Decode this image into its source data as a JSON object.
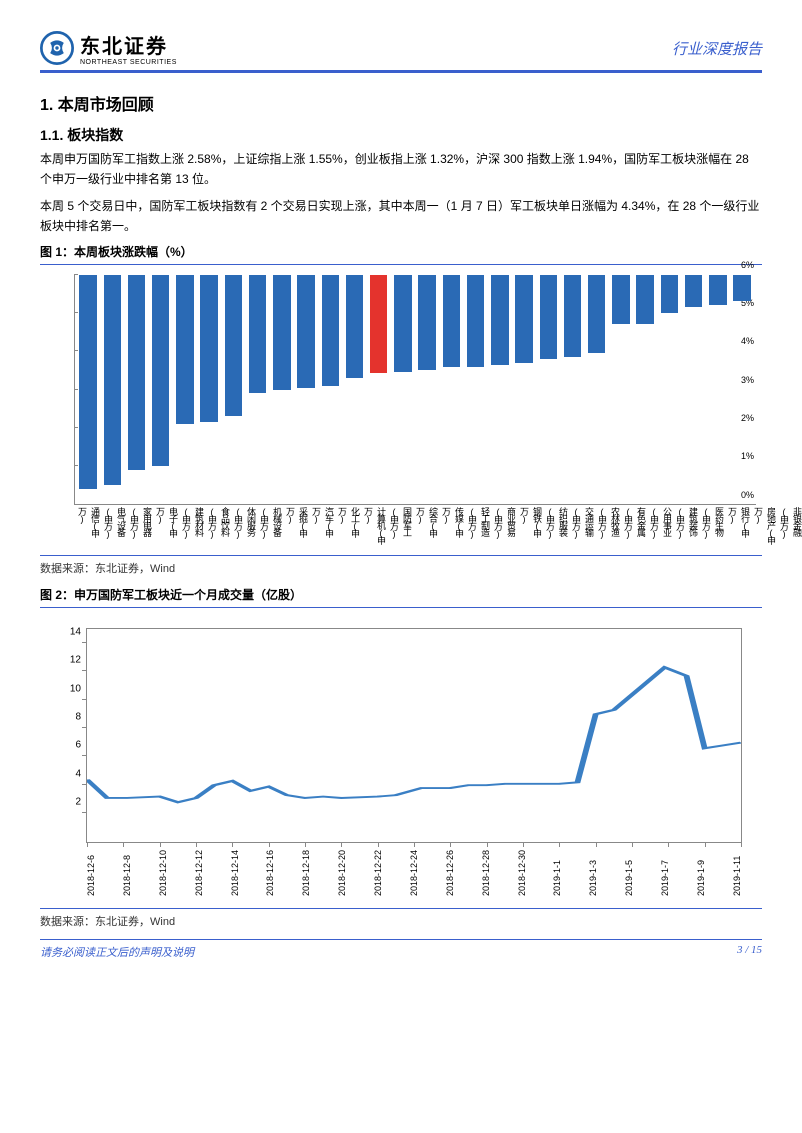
{
  "header": {
    "logo_cn": "东北证券",
    "logo_en": "NORTHEAST SECURITIES",
    "right": "行业深度报告",
    "logo_color": "#1f63ad"
  },
  "section": {
    "h1": "1. 本周市场回顾",
    "h2": "1.1. 板块指数",
    "p1": "本周申万国防军工指数上涨 2.58%，上证综指上涨 1.55%，创业板指上涨 1.32%，沪深 300 指数上涨 1.94%，国防军工板块涨幅在 28 个申万一级行业中排名第 13 位。",
    "p2": "本周 5 个交易日中，国防军工板块指数有 2 个交易日实现上涨，其中本周一（1 月 7 日）军工板块单日涨幅为 4.34%，在 28 个一级行业板块中排名第一。"
  },
  "chart1": {
    "title": "图 1：本周板块涨跌幅（%）",
    "source": "数据来源：东北证券，Wind",
    "type": "bar",
    "ylim": [
      0,
      6
    ],
    "ytick_step": 1,
    "ytick_labels": [
      "0%",
      "1%",
      "2%",
      "3%",
      "4%",
      "5%",
      "6%"
    ],
    "bar_default_color": "#2a6ab5",
    "highlight_color": "#e4332d",
    "background_color": "#ffffff",
    "axis_color": "#888888",
    "label_fontsize": 9,
    "categories": [
      "通信(申万)",
      "电气设备(申万)",
      "家用电器(申万)",
      "电子(申万)",
      "建筑材料(申万)",
      "食品饮料(申万)",
      "休闲服务(申万)",
      "机械设备(申万)",
      "采掘(申万)",
      "汽车(申万)",
      "化工(申万)",
      "计算机(申万)",
      "国防军工(申万)",
      "综合(申万)",
      "传媒(申万)",
      "轻工制造(申万)",
      "商业贸易(申万)",
      "钢铁(申万)",
      "纺织服装(申万)",
      "交通运输(申万)",
      "农林牧渔(申万)",
      "有色金属(申万)",
      "公用事业(申万)",
      "建筑装饰(申万)",
      "医药生物(申万)",
      "银行(申万)",
      "房地产(申万)",
      "非银金融(申万)"
    ],
    "values": [
      5.6,
      5.5,
      5.1,
      5.0,
      3.9,
      3.85,
      3.7,
      3.1,
      3.0,
      2.95,
      2.9,
      2.7,
      2.58,
      2.55,
      2.5,
      2.4,
      2.4,
      2.35,
      2.3,
      2.2,
      2.15,
      2.05,
      1.3,
      1.3,
      1.0,
      0.85,
      0.8,
      0.7
    ],
    "highlight_index": 12
  },
  "chart2": {
    "title": "图 2：申万国防军工板块近一个月成交量（亿股）",
    "source": "数据来源：东北证券，Wind",
    "type": "line",
    "ylim": [
      0,
      15
    ],
    "yticks": [
      2,
      4,
      6,
      8,
      10,
      12,
      14
    ],
    "line_color": "#3a7fc4",
    "line_width": 1.8,
    "background_color": "#ffffff",
    "axis_color": "#888888",
    "border": true,
    "label_fontsize": 10,
    "x_labels_shown": [
      "2018-12-6",
      "2018-12-8",
      "2018-12-10",
      "2018-12-12",
      "2018-12-14",
      "2018-12-16",
      "2018-12-18",
      "2018-12-20",
      "2018-12-22",
      "2018-12-24",
      "2018-12-26",
      "2018-12-28",
      "2018-12-30",
      "2019-1-1",
      "2019-1-3",
      "2019-1-5",
      "2019-1-7",
      "2019-1-9",
      "2019-1-11"
    ],
    "points": [
      {
        "x": 0,
        "y": 4.4
      },
      {
        "x": 0.55,
        "y": 3.1
      },
      {
        "x": 1.1,
        "y": 3.1
      },
      {
        "x": 2.0,
        "y": 3.2
      },
      {
        "x": 2.5,
        "y": 2.8
      },
      {
        "x": 3.0,
        "y": 3.1
      },
      {
        "x": 3.5,
        "y": 4.0
      },
      {
        "x": 4.0,
        "y": 4.3
      },
      {
        "x": 4.5,
        "y": 3.6
      },
      {
        "x": 5.0,
        "y": 3.9
      },
      {
        "x": 5.5,
        "y": 3.3
      },
      {
        "x": 6.0,
        "y": 3.1
      },
      {
        "x": 6.5,
        "y": 3.2
      },
      {
        "x": 7.0,
        "y": 3.1
      },
      {
        "x": 8.0,
        "y": 3.2
      },
      {
        "x": 8.5,
        "y": 3.3
      },
      {
        "x": 9.2,
        "y": 3.8
      },
      {
        "x": 10.0,
        "y": 3.8
      },
      {
        "x": 10.5,
        "y": 4.0
      },
      {
        "x": 11.0,
        "y": 4.0
      },
      {
        "x": 11.5,
        "y": 4.1
      },
      {
        "x": 13.0,
        "y": 4.1
      },
      {
        "x": 13.5,
        "y": 4.2
      },
      {
        "x": 14.0,
        "y": 9.0
      },
      {
        "x": 14.5,
        "y": 9.3
      },
      {
        "x": 15.9,
        "y": 12.3
      },
      {
        "x": 16.5,
        "y": 11.7
      },
      {
        "x": 17.0,
        "y": 6.6
      },
      {
        "x": 17.5,
        "y": 6.8
      },
      {
        "x": 18.0,
        "y": 7.0
      }
    ],
    "x_domain": [
      0,
      18
    ]
  },
  "footer": {
    "left": "请务必阅读正文后的声明及说明",
    "right": "3 / 15",
    "color": "#3a5fcd"
  }
}
